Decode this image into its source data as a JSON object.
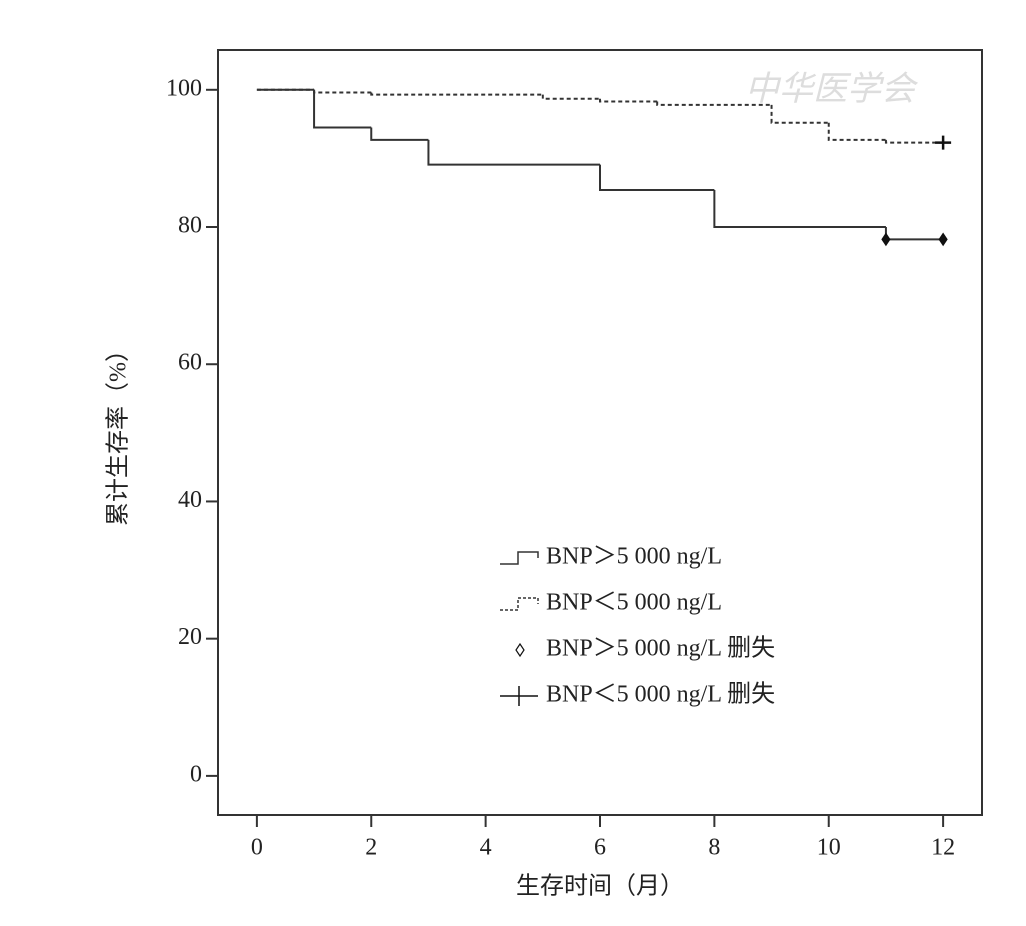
{
  "chart_data": {
    "type": "step",
    "watermark": "中华医学会",
    "xlabel": "生存时间（月）",
    "ylabel": "累计生存率（%）",
    "xlim": [
      -0.68,
      12.68
    ],
    "ylim": [
      -5.7,
      105.8
    ],
    "xticks": [
      0,
      2,
      4,
      6,
      8,
      10,
      12
    ],
    "yticks": [
      0,
      20,
      40,
      60,
      80,
      100
    ],
    "series": [
      {
        "name": "BNP＞5 000 ng/L",
        "kind": "step",
        "dash": false,
        "color": "#333333",
        "x": [
          0,
          1,
          2,
          3,
          6,
          8,
          11,
          12
        ],
        "values": [
          100,
          94.5,
          92.7,
          89.1,
          85.4,
          80,
          78.2,
          78.2
        ]
      },
      {
        "name": "BNP＜5 000 ng/L",
        "kind": "step",
        "dash": true,
        "color": "#333333",
        "x": [
          0,
          1,
          2,
          5,
          6,
          7,
          9,
          10,
          11,
          12
        ],
        "values": [
          100,
          99.6,
          99.3,
          98.7,
          98.3,
          97.8,
          95.2,
          92.7,
          92.3,
          92.3
        ]
      },
      {
        "name": "BNP＞5 000 ng/L 删失",
        "kind": "censor",
        "marker": "diamond",
        "color": "#111111",
        "x": [
          11,
          12
        ],
        "values": [
          78.2,
          78.2
        ]
      },
      {
        "name": "BNP＜5 000 ng/L 删失",
        "kind": "censor",
        "marker": "plus",
        "color": "#111111",
        "x": [
          12
        ],
        "values": [
          92.3
        ]
      }
    ]
  }
}
